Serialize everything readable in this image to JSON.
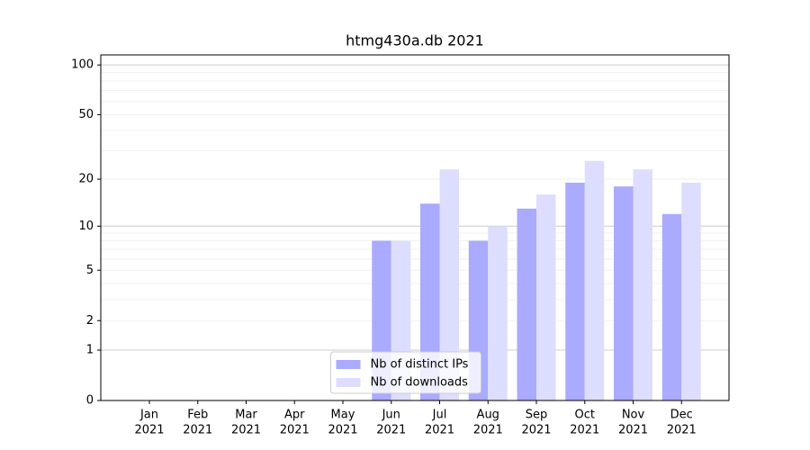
{
  "chart_data": {
    "type": "bar",
    "title": "htmg430a.db 2021",
    "categories": [
      [
        "Jan",
        "2021"
      ],
      [
        "Feb",
        "2021"
      ],
      [
        "Mar",
        "2021"
      ],
      [
        "Apr",
        "2021"
      ],
      [
        "May",
        "2021"
      ],
      [
        "Jun",
        "2021"
      ],
      [
        "Jul",
        "2021"
      ],
      [
        "Aug",
        "2021"
      ],
      [
        "Sep",
        "2021"
      ],
      [
        "Oct",
        "2021"
      ],
      [
        "Nov",
        "2021"
      ],
      [
        "Dec",
        "2021"
      ]
    ],
    "series": [
      {
        "name": "Nb of distinct IPs",
        "color": "#aaaaff",
        "values": [
          0,
          0,
          0,
          0,
          0,
          8,
          14,
          8,
          13,
          19,
          18,
          12
        ]
      },
      {
        "name": "Nb of downloads",
        "color": "#ddddff",
        "values": [
          0,
          0,
          0,
          0,
          0,
          8,
          23,
          10,
          16,
          26,
          23,
          19
        ]
      }
    ],
    "yscale": "log1p",
    "ylim": [
      0,
      115
    ],
    "yticks": [
      0,
      1,
      2,
      5,
      10,
      20,
      50,
      100
    ],
    "ygrid": [
      1,
      10,
      100
    ],
    "yminorgrid": [
      2,
      3,
      4,
      5,
      6,
      7,
      8,
      9,
      20,
      30,
      40,
      50,
      60,
      70,
      80,
      90
    ],
    "legend": "lower center"
  }
}
